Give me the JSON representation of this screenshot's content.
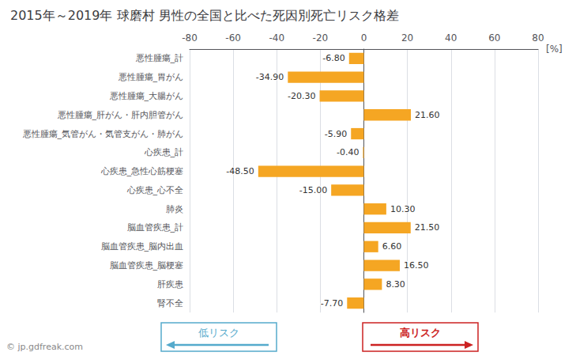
{
  "chart_data": {
    "type": "bar",
    "orientation": "horizontal",
    "title": "2015年～2019年 球磨村 男性の全国と比べた死因別死亡リスク格差",
    "xlabel": "[%]",
    "categories": [
      "悪性腫瘍_計",
      "悪性腫瘍_胃がん",
      "悪性腫瘍_大腸がん",
      "悪性腫瘍_肝がん・肝内胆管がん",
      "悪性腫瘍_気管がん・気管支がん・肺がん",
      "心疾患_計",
      "心疾患_急性心筋梗塞",
      "心疾患_心不全",
      "肺炎",
      "脳血管疾患_計",
      "脳血管疾患_脳内出血",
      "脳血管疾患_脳梗塞",
      "肝疾患",
      "腎不全"
    ],
    "values": [
      -6.8,
      -34.9,
      -20.3,
      21.6,
      -5.9,
      -0.4,
      -48.5,
      -15.0,
      10.3,
      21.5,
      6.6,
      16.5,
      8.3,
      -7.7
    ],
    "value_labels": [
      "-6.80",
      "-34.90",
      "-20.30",
      "21.60",
      "-5.90",
      "-0.40",
      "-48.50",
      "-15.00",
      "10.30",
      "21.50",
      "6.60",
      "16.50",
      "8.30",
      "-7.70"
    ],
    "data_labels": true,
    "color": "#F5A623",
    "xlim": [
      -80,
      80
    ],
    "xticks": [
      -80,
      -60,
      -40,
      -20,
      0,
      20,
      40,
      60,
      80
    ],
    "grid": true,
    "annotations": [
      {
        "text": "低リスク",
        "color": "#55AACC"
      },
      {
        "text": "高リスク",
        "color": "#CC2222"
      },
      {
        "text": "© jp.gdfreak.com",
        "color": "#888888"
      }
    ]
  }
}
